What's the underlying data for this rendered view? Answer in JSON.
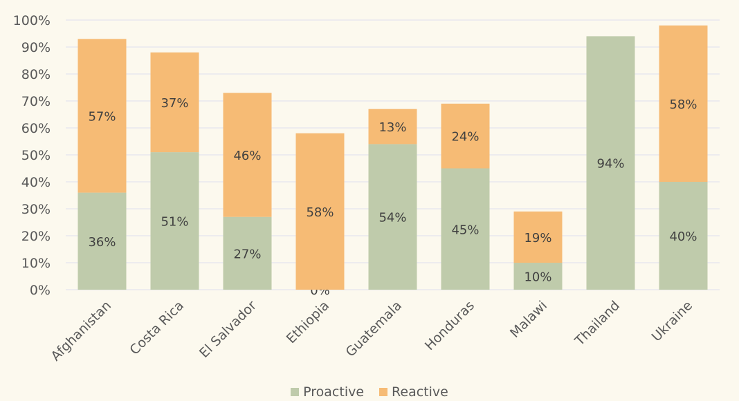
{
  "chart_data": {
    "type": "bar",
    "stacked": true,
    "title": "",
    "xlabel": "",
    "ylabel": "",
    "ylim": [
      0,
      100
    ],
    "yticks": [
      "0%",
      "10%",
      "20%",
      "30%",
      "40%",
      "50%",
      "60%",
      "70%",
      "80%",
      "90%",
      "100%"
    ],
    "grid": true,
    "legend_position": "bottom",
    "categories": [
      "Afghanistan",
      "Costa Rica",
      "El Salvador",
      "Ethiopia",
      "Guatemala",
      "Honduras",
      "Malawi",
      "Thailand",
      "Ukraine"
    ],
    "series": [
      {
        "name": "Proactive",
        "color": "#bfcbab",
        "values": [
          36,
          51,
          27,
          0,
          54,
          45,
          10,
          94,
          40
        ],
        "labels": [
          "36%",
          "51%",
          "27%",
          "0%",
          "54%",
          "45%",
          "10%",
          "94%",
          "40%"
        ]
      },
      {
        "name": "Reactive",
        "color": "#f6bb75",
        "values": [
          57,
          37,
          46,
          58,
          13,
          24,
          19,
          0,
          58
        ],
        "labels": [
          "57%",
          "37%",
          "46%",
          "58%",
          "13%",
          "24%",
          "19%",
          "",
          "58%"
        ]
      }
    ]
  }
}
